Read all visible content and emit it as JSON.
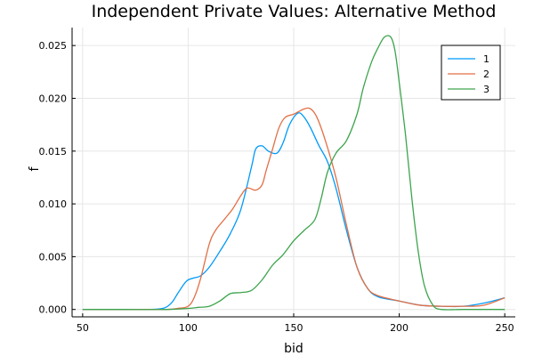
{
  "chart_data": {
    "type": "line",
    "title": "Independent Private Values: Alternative Method",
    "xlabel": "bid",
    "ylabel": "f",
    "xlim": [
      45,
      255
    ],
    "ylim": [
      -0.0007,
      0.0267
    ],
    "xticks": [
      50,
      100,
      150,
      200,
      250
    ],
    "yticks": [
      0.0,
      0.005,
      0.01,
      0.015,
      0.02,
      0.025
    ],
    "ytick_labels": [
      "0.000",
      "0.005",
      "0.010",
      "0.015",
      "0.020",
      "0.025"
    ],
    "grid": true,
    "legend_position": "top-right",
    "series": [
      {
        "name": "1",
        "color": "#009af9",
        "x": [
          50,
          60,
          70,
          80,
          88,
          92,
          95,
          98,
          100,
          103,
          106,
          110,
          115,
          120,
          125,
          130,
          132,
          135,
          138,
          142,
          145,
          148,
          152,
          155,
          158,
          162,
          166,
          170,
          175,
          180,
          185,
          190,
          200,
          210,
          220,
          230,
          240,
          250
        ],
        "y": [
          0,
          0,
          0,
          0,
          0.0001,
          0.0006,
          0.0015,
          0.0024,
          0.0028,
          0.003,
          0.0032,
          0.004,
          0.0055,
          0.0072,
          0.0095,
          0.0135,
          0.0152,
          0.0155,
          0.015,
          0.0148,
          0.0158,
          0.0175,
          0.0186,
          0.0182,
          0.0172,
          0.0155,
          0.014,
          0.0115,
          0.0075,
          0.004,
          0.002,
          0.0012,
          0.0008,
          0.0004,
          0.0003,
          0.0003,
          0.0006,
          0.0011
        ]
      },
      {
        "name": "2",
        "color": "#e26f46",
        "x": [
          50,
          60,
          70,
          80,
          90,
          95,
          100,
          103,
          106,
          110,
          113,
          117,
          121,
          125,
          128,
          132,
          135,
          137,
          140,
          143,
          146,
          150,
          155,
          158,
          161,
          165,
          170,
          175,
          180,
          185,
          190,
          200,
          210,
          220,
          230,
          240,
          250
        ],
        "y": [
          0,
          0,
          0,
          0,
          0,
          0.0001,
          0.0003,
          0.0012,
          0.003,
          0.0062,
          0.0075,
          0.0085,
          0.0095,
          0.0108,
          0.0115,
          0.0113,
          0.0118,
          0.0132,
          0.0152,
          0.0172,
          0.0182,
          0.0185,
          0.019,
          0.019,
          0.0182,
          0.016,
          0.0125,
          0.008,
          0.004,
          0.002,
          0.0013,
          0.0008,
          0.0004,
          0.0003,
          0.0003,
          0.0004,
          0.0011
        ]
      },
      {
        "name": "3",
        "color": "#3da44d",
        "x": [
          50,
          70,
          90,
          100,
          105,
          110,
          115,
          120,
          125,
          130,
          135,
          140,
          145,
          150,
          155,
          160,
          163,
          166,
          170,
          175,
          180,
          183,
          187,
          190,
          193,
          196,
          198,
          200,
          203,
          206,
          209,
          212,
          216,
          220,
          230,
          240,
          250
        ],
        "y": [
          0,
          0,
          0,
          0.0001,
          0.0002,
          0.0003,
          0.0008,
          0.0015,
          0.0016,
          0.0018,
          0.0028,
          0.0042,
          0.0052,
          0.0065,
          0.0075,
          0.0085,
          0.0105,
          0.013,
          0.0148,
          0.016,
          0.0185,
          0.021,
          0.0235,
          0.0248,
          0.0258,
          0.0258,
          0.0245,
          0.0215,
          0.0165,
          0.0105,
          0.0055,
          0.0022,
          0.0004,
          0.0,
          0,
          0,
          0
        ]
      }
    ]
  }
}
